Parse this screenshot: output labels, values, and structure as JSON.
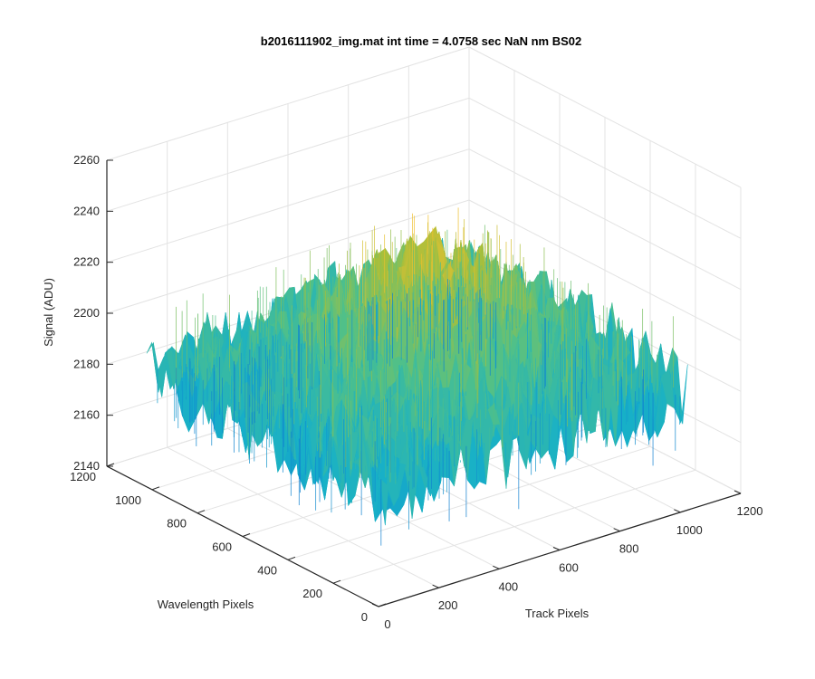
{
  "chart_data": {
    "type": "surface",
    "title": "b2016111902_img.mat int time = 4.0758 sec  NaN nm BS02",
    "xlabel": "Track Pixels",
    "ylabel": "Wavelength Pixels",
    "zlabel": "Signal (ADU)",
    "xlim": [
      0,
      1200
    ],
    "ylim": [
      0,
      1200
    ],
    "zlim": [
      2140,
      2260
    ],
    "xticks": [
      "0",
      "200",
      "400",
      "600",
      "800",
      "1000",
      "1200"
    ],
    "yticks": [
      "0",
      "200",
      "400",
      "600",
      "800",
      "1000",
      "1200"
    ],
    "zticks": [
      "2140",
      "2160",
      "2180",
      "2200",
      "2220",
      "2240",
      "2260"
    ],
    "grid": true,
    "colormap": "parula",
    "surface": {
      "x_range": [
        0,
        1024
      ],
      "y_range": [
        0,
        1024
      ],
      "edge_level": 2185,
      "center_level": 2225,
      "noise_amplitude": 18
    }
  },
  "colors": {
    "low": "#0f7fd0",
    "mid_low": "#17b0c8",
    "mid": "#4fc08a",
    "mid_high": "#a6bf3c",
    "high": "#f0c030"
  }
}
